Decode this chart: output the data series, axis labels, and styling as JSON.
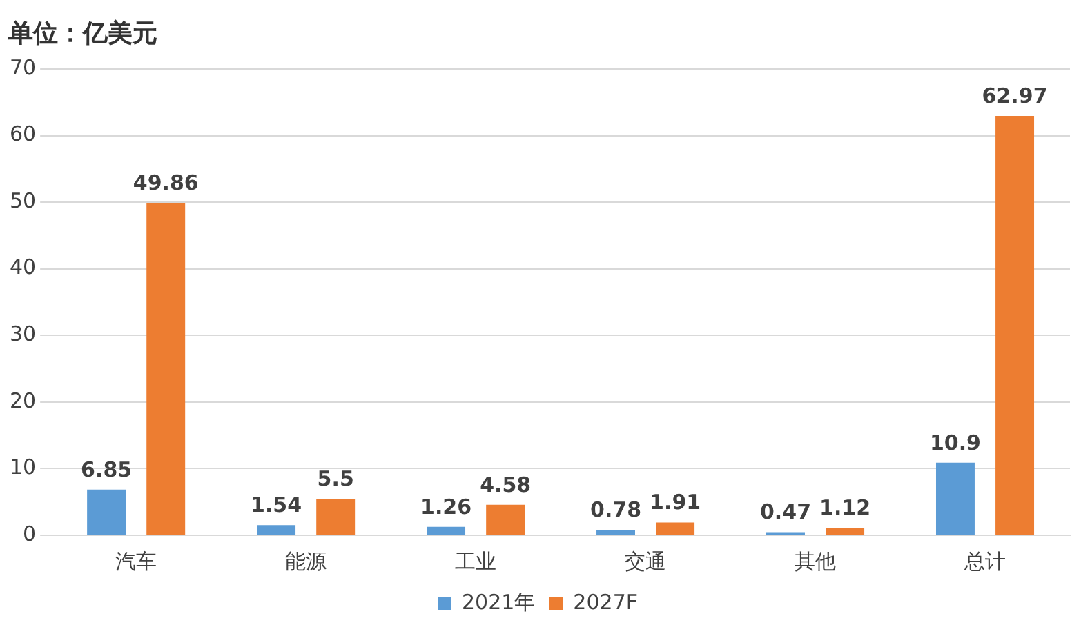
{
  "chart_data": {
    "type": "bar",
    "title": "单位：亿美元",
    "categories": [
      "汽车",
      "能源",
      "工业",
      "交通",
      "其他",
      "总计"
    ],
    "series": [
      {
        "name": "2021年",
        "color": "#5b9bd5",
        "values": [
          6.85,
          1.54,
          1.26,
          0.78,
          0.47,
          10.9
        ]
      },
      {
        "name": "2027F",
        "color": "#ed7d31",
        "values": [
          49.86,
          5.5,
          4.58,
          1.91,
          1.12,
          62.97
        ]
      }
    ],
    "ylim": [
      0,
      70
    ],
    "yticks": [
      0,
      10,
      20,
      30,
      40,
      50,
      60,
      70
    ],
    "grid": "y",
    "legend": "bottom",
    "data_labels": true
  }
}
